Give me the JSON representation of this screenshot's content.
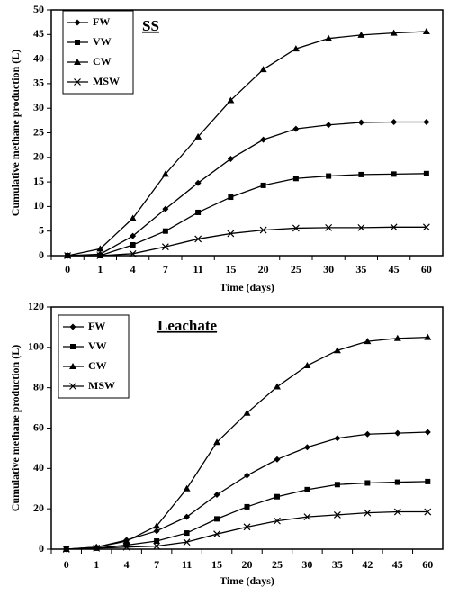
{
  "chart_data": [
    {
      "type": "line",
      "title": "SS",
      "x_label": "Time (days)",
      "y_label": "Cumulative methane production (L)",
      "categories": [
        "0",
        "1",
        "4",
        "7",
        "11",
        "15",
        "20",
        "25",
        "30",
        "35",
        "45",
        "60"
      ],
      "ylim": [
        0,
        50
      ],
      "yticks": [
        0,
        5,
        10,
        15,
        20,
        25,
        30,
        35,
        40,
        45,
        50
      ],
      "legend": "upper left",
      "series": [
        {
          "name": "FW",
          "color": "#000000",
          "marker": "diamond",
          "values": [
            0,
            0.3,
            4,
            9.5,
            14.8,
            19.7,
            23.6,
            25.8,
            26.6,
            27.1,
            27.2,
            27.2
          ]
        },
        {
          "name": "VW",
          "color": "#000000",
          "marker": "square",
          "values": [
            0,
            0,
            2.2,
            5,
            8.8,
            11.9,
            14.3,
            15.7,
            16.2,
            16.5,
            16.6,
            16.7
          ]
        },
        {
          "name": "CW",
          "color": "#000000",
          "marker": "triangle",
          "values": [
            0,
            1.4,
            7.6,
            16.6,
            24.2,
            31.6,
            37.9,
            42.1,
            44.2,
            44.9,
            45.3,
            45.6
          ]
        },
        {
          "name": "MSW",
          "color": "#000000",
          "marker": "x",
          "values": [
            0,
            0,
            0.4,
            1.8,
            3.4,
            4.5,
            5.2,
            5.6,
            5.7,
            5.7,
            5.8,
            5.8
          ]
        }
      ]
    },
    {
      "type": "line",
      "title": "Leachate",
      "x_label": "Time (days)",
      "y_label": "Cumulative methane production (L)",
      "categories": [
        "0",
        "1",
        "4",
        "7",
        "11",
        "15",
        "20",
        "25",
        "30",
        "35",
        "42",
        "45",
        "60"
      ],
      "ylim": [
        0,
        120
      ],
      "yticks": [
        0,
        20,
        40,
        60,
        80,
        100,
        120
      ],
      "legend": "upper left",
      "series": [
        {
          "name": "FW",
          "color": "#000000",
          "marker": "diamond",
          "values": [
            0,
            1,
            4.5,
            9,
            16,
            27,
            36.5,
            44.5,
            50.5,
            55,
            57,
            57.5,
            58
          ]
        },
        {
          "name": "VW",
          "color": "#000000",
          "marker": "square",
          "values": [
            0,
            0.5,
            2,
            4,
            8,
            15,
            21,
            26,
            29.5,
            32,
            32.8,
            33.2,
            33.5
          ]
        },
        {
          "name": "CW",
          "color": "#000000",
          "marker": "triangle",
          "values": [
            0,
            1,
            4,
            11.5,
            30,
            53,
            67.5,
            80.5,
            91,
            98.5,
            103,
            104.5,
            105
          ]
        },
        {
          "name": "MSW",
          "color": "#000000",
          "marker": "x",
          "values": [
            0,
            0.5,
            1,
            1.5,
            3.5,
            7.5,
            11,
            14,
            16,
            17,
            18,
            18.5,
            18.5
          ]
        }
      ]
    }
  ]
}
